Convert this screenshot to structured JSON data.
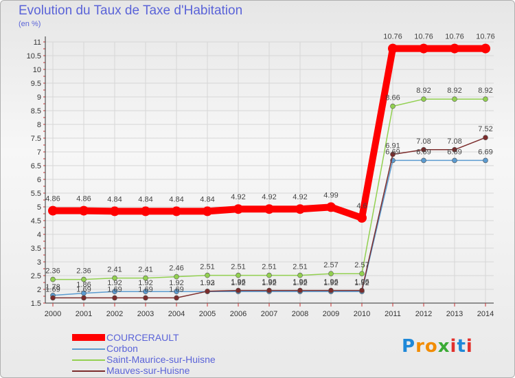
{
  "header": {
    "title": "Evolution du Taux de Taxe d'Habitation",
    "subtitle": "(en %)"
  },
  "chart_data": {
    "type": "line",
    "x": [
      2000,
      2001,
      2002,
      2003,
      2004,
      2005,
      2006,
      2007,
      2008,
      2009,
      2010,
      2011,
      2012,
      2013,
      2014
    ],
    "ylim": [
      1.5,
      11
    ],
    "yticks": [
      "1.5",
      "2",
      "2.5",
      "3",
      "3.5",
      "4",
      "4.5",
      "5",
      "5.5",
      "6",
      "6.5",
      "7",
      "7.5",
      "8",
      "8.5",
      "9",
      "9.5",
      "10",
      "10.5",
      "11"
    ],
    "grid": true,
    "legend_position": "bottom-left",
    "series": [
      {
        "name": "COURCERAULT",
        "color": "#ff0000",
        "values": [
          4.86,
          4.86,
          4.84,
          4.84,
          4.84,
          4.84,
          4.92,
          4.92,
          4.92,
          4.99,
          4.6,
          10.76,
          10.76,
          10.76,
          10.76
        ],
        "labels": [
          "4.86",
          "4.86",
          "4.84",
          "4.84",
          "4.84",
          "4.84",
          "4.92",
          "4.92",
          "4.92",
          "4.99",
          "4.6",
          "10.76",
          "10.76",
          "10.76",
          "10.76"
        ]
      },
      {
        "name": "Corbon",
        "color": "#5b9bd0",
        "values": [
          1.78,
          1.86,
          1.92,
          1.92,
          1.92,
          1.92,
          1.92,
          1.92,
          1.92,
          1.92,
          1.92,
          6.69,
          6.69,
          6.69,
          6.69
        ],
        "labels": [
          "1.78",
          "1.86",
          "1.92",
          "1.92",
          "1.92",
          "1.92",
          "1.92",
          "1.92",
          "1.92",
          "1.92",
          "1.92",
          "6.69",
          "6.69",
          "6.69",
          "6.69"
        ]
      },
      {
        "name": "Saint-Maurice-sur-Huisne",
        "color": "#92d050",
        "values": [
          2.36,
          2.36,
          2.41,
          2.41,
          2.46,
          2.51,
          2.51,
          2.51,
          2.51,
          2.57,
          2.57,
          8.66,
          8.92,
          8.92,
          8.92
        ],
        "labels": [
          "2.36",
          "2.36",
          "2.41",
          "2.41",
          "2.46",
          "2.51",
          "2.51",
          "2.51",
          "2.51",
          "2.57",
          "2.57",
          "8.66",
          "8.92",
          "8.92",
          "8.92"
        ]
      },
      {
        "name": "Mauves-sur-Huisne",
        "color": "#7b2c2c",
        "values": [
          1.69,
          1.69,
          1.69,
          1.69,
          1.69,
          1.93,
          1.96,
          1.96,
          1.96,
          1.96,
          1.96,
          6.91,
          7.08,
          7.08,
          7.52
        ],
        "labels": [
          "1.69",
          "1.69",
          "1.69",
          "1.69",
          "1.69",
          "1.93",
          "1.96",
          "1.96",
          "1.96",
          "1.96",
          "1.96",
          "6.91",
          "7.08",
          "7.08",
          "7.52"
        ]
      }
    ]
  },
  "logo": {
    "letters": [
      "P",
      "r",
      "o",
      "x",
      "i",
      "t",
      "i"
    ],
    "colors": [
      "#1e88d8",
      "#f28c00",
      "#f28c00",
      "#3aaa35",
      "#e2302c",
      "#1e88d8",
      "#e2302c"
    ]
  }
}
